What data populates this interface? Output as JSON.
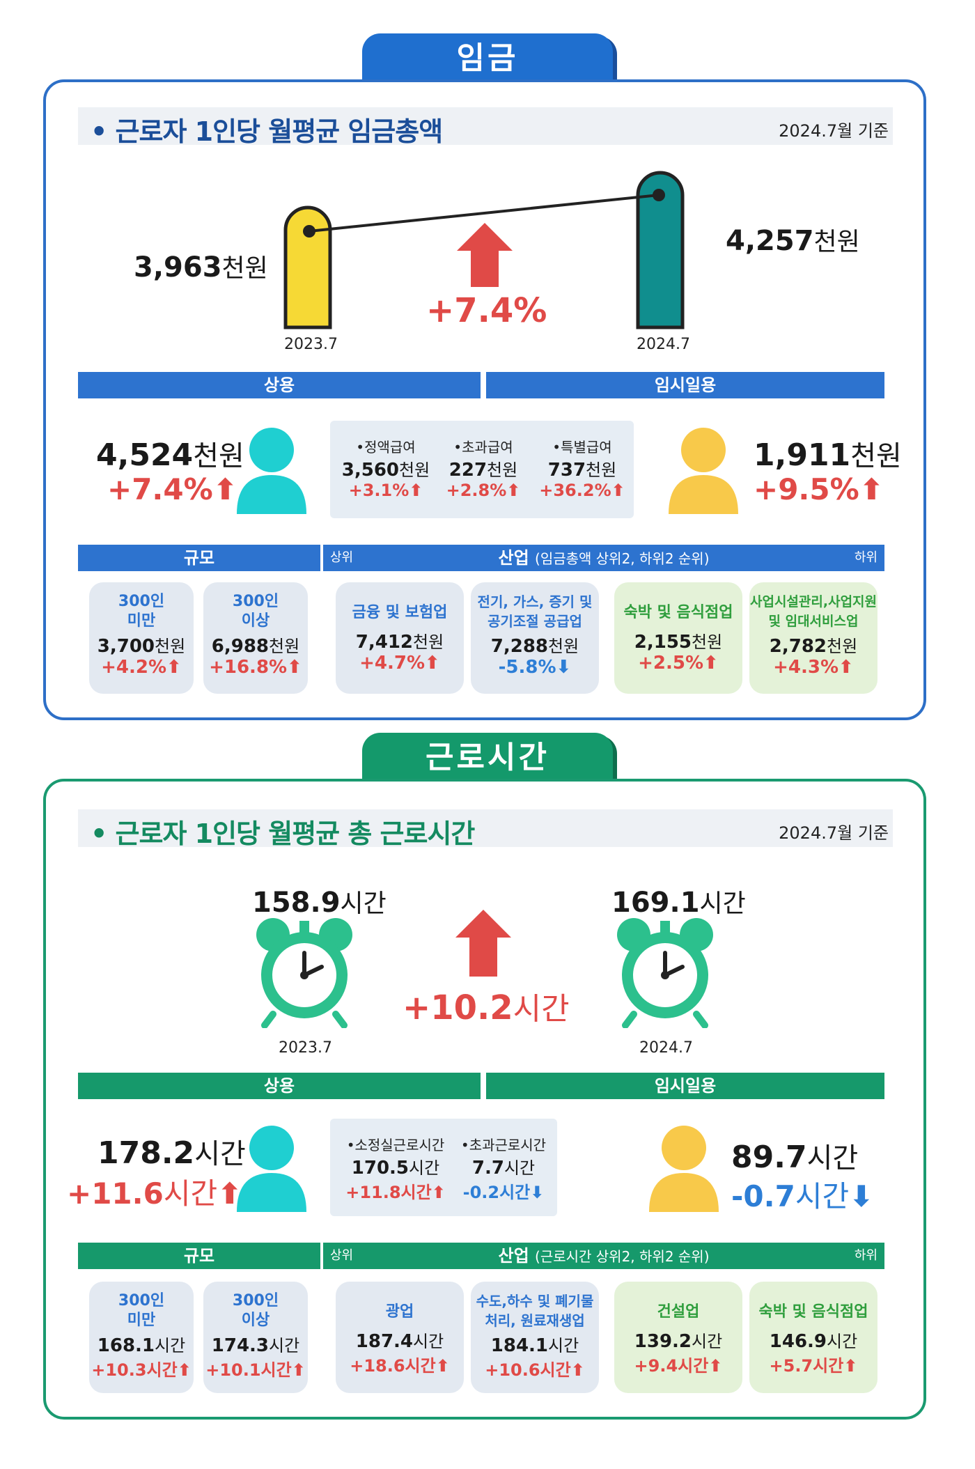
{
  "wage": {
    "tab": "임금",
    "title": "근로자 1인당 월평균 임금총액",
    "as_of": "2024.7월 기준",
    "y2023_value": "3,963",
    "y2023_unit": "천원",
    "y2023_label": "2023.7",
    "y2024_value": "4,257",
    "y2024_unit": "천원",
    "y2024_label": "2024.7",
    "change": "+7.4%",
    "regular_label": "상용",
    "temp_label": "임시일용",
    "regular_value": "4,524",
    "regular_unit": "천원",
    "regular_change": "+7.4%",
    "temp_value": "1,911",
    "temp_unit": "천원",
    "temp_change": "+9.5%",
    "components": [
      {
        "label": "•정액급여",
        "value": "3,560",
        "unit": "천원",
        "change": "+3.1%"
      },
      {
        "label": "•초과급여",
        "value": "227",
        "unit": "천원",
        "change": "+2.8%"
      },
      {
        "label": "•특별급여",
        "value": "737",
        "unit": "천원",
        "change": "+36.2%"
      }
    ],
    "scale_label": "규모",
    "industry_top": "상위",
    "industry_label": "산업",
    "industry_note": "(임금총액 상위2, 하위2 순위)",
    "industry_bottom": "하위",
    "cards": [
      {
        "name1": "300인",
        "name2": "미만",
        "value": "3,700",
        "unit": "천원",
        "change": "+4.2%"
      },
      {
        "name1": "300인",
        "name2": "이상",
        "value": "6,988",
        "unit": "천원",
        "change": "+16.8%"
      },
      {
        "name1": "금융 및 보험업",
        "name2": "",
        "value": "7,412",
        "unit": "천원",
        "change": "+4.7%"
      },
      {
        "name1": "전기, 가스, 증기 및",
        "name2": "공기조절 공급업",
        "value": "7,288",
        "unit": "천원",
        "change": "-5.8%"
      },
      {
        "name1": "숙박 및 음식점업",
        "name2": "",
        "value": "2,155",
        "unit": "천원",
        "change": "+2.5%"
      },
      {
        "name1": "사업시설관리,사업지원",
        "name2": "및 임대서비스업",
        "value": "2,782",
        "unit": "천원",
        "change": "+4.3%"
      }
    ]
  },
  "hours": {
    "tab": "근로시간",
    "title": "근로자 1인당 월평균 총 근로시간",
    "as_of": "2024.7월 기준",
    "y2023_value": "158.9",
    "y2023_unit": "시간",
    "y2023_label": "2023.7",
    "y2024_value": "169.1",
    "y2024_unit": "시간",
    "y2024_label": "2024.7",
    "change_num": "+10.2",
    "change_unit": "시간",
    "regular_label": "상용",
    "temp_label": "임시일용",
    "regular_value": "178.2",
    "regular_unit": "시간",
    "regular_change_num": "+11.6",
    "regular_change_unit": "시간",
    "temp_value": "89.7",
    "temp_unit": "시간",
    "temp_change_num": "-0.7",
    "temp_change_unit": "시간",
    "components": [
      {
        "label": "•소정실근로시간",
        "value": "170.5",
        "unit": "시간",
        "change": "+11.8시간"
      },
      {
        "label": "•초과근로시간",
        "value": "7.7",
        "unit": "시간",
        "change": "-0.2시간"
      }
    ],
    "scale_label": "규모",
    "industry_top": "상위",
    "industry_label": "산업",
    "industry_note": "(근로시간 상위2, 하위2 순위)",
    "industry_bottom": "하위",
    "cards": [
      {
        "name1": "300인",
        "name2": "미만",
        "value": "168.1",
        "unit": "시간",
        "change": "+10.3시간"
      },
      {
        "name1": "300인",
        "name2": "이상",
        "value": "174.3",
        "unit": "시간",
        "change": "+10.1시간"
      },
      {
        "name1": "광업",
        "name2": "",
        "value": "187.4",
        "unit": "시간",
        "change": "+18.6시간"
      },
      {
        "name1": "수도,하수 및 폐기물",
        "name2": "처리, 원료재생업",
        "value": "184.1",
        "unit": "시간",
        "change": "+10.6시간"
      },
      {
        "name1": "건설업",
        "name2": "",
        "value": "139.2",
        "unit": "시간",
        "change": "+9.4시간"
      },
      {
        "name1": "숙박 및 음식점업",
        "name2": "",
        "value": "146.9",
        "unit": "시간",
        "change": "+5.7시간"
      }
    ]
  },
  "colors": {
    "blue": "#2d73cf",
    "green": "#16996b",
    "red": "#e04a47",
    "yellow": "#f6d935",
    "teal": "#108e8e",
    "cyan": "#1fcfd1",
    "person_yellow": "#f8c94a"
  },
  "icons": [
    "person-icon",
    "alarm-clock-icon",
    "up-arrow-icon",
    "down-arrow-icon"
  ]
}
